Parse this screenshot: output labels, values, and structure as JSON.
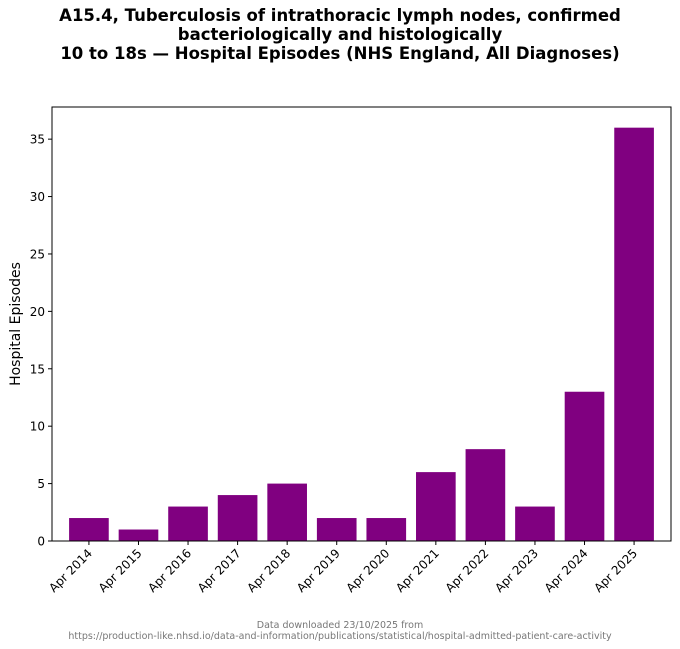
{
  "chart_data": {
    "type": "bar",
    "title_lines": [
      "A15.4, Tuberculosis of intrathoracic lymph nodes, confirmed",
      "bacteriologically and histologically",
      "10 to 18s — Hospital Episodes (NHS England, All Diagnoses)"
    ],
    "ylabel": "Hospital Episodes",
    "xlabel": "",
    "categories": [
      "Apr 2014",
      "Apr 2015",
      "Apr 2016",
      "Apr 2017",
      "Apr 2018",
      "Apr 2019",
      "Apr 2020",
      "Apr 2021",
      "Apr 2022",
      "Apr 2023",
      "Apr 2024",
      "Apr 2025"
    ],
    "values": [
      2,
      1,
      3,
      4,
      5,
      2,
      2,
      6,
      8,
      3,
      13,
      36
    ],
    "ylim": [
      0,
      37.8
    ],
    "yticks": [
      0,
      5,
      10,
      15,
      20,
      25,
      30,
      35
    ],
    "bar_color": "#800080",
    "grid": false,
    "legend": "none"
  },
  "footer": {
    "line1": "Data downloaded 23/10/2025 from",
    "line2": "https://production-like.nhsd.io/data-and-information/publications/statistical/hospital-admitted-patient-care-activity"
  }
}
